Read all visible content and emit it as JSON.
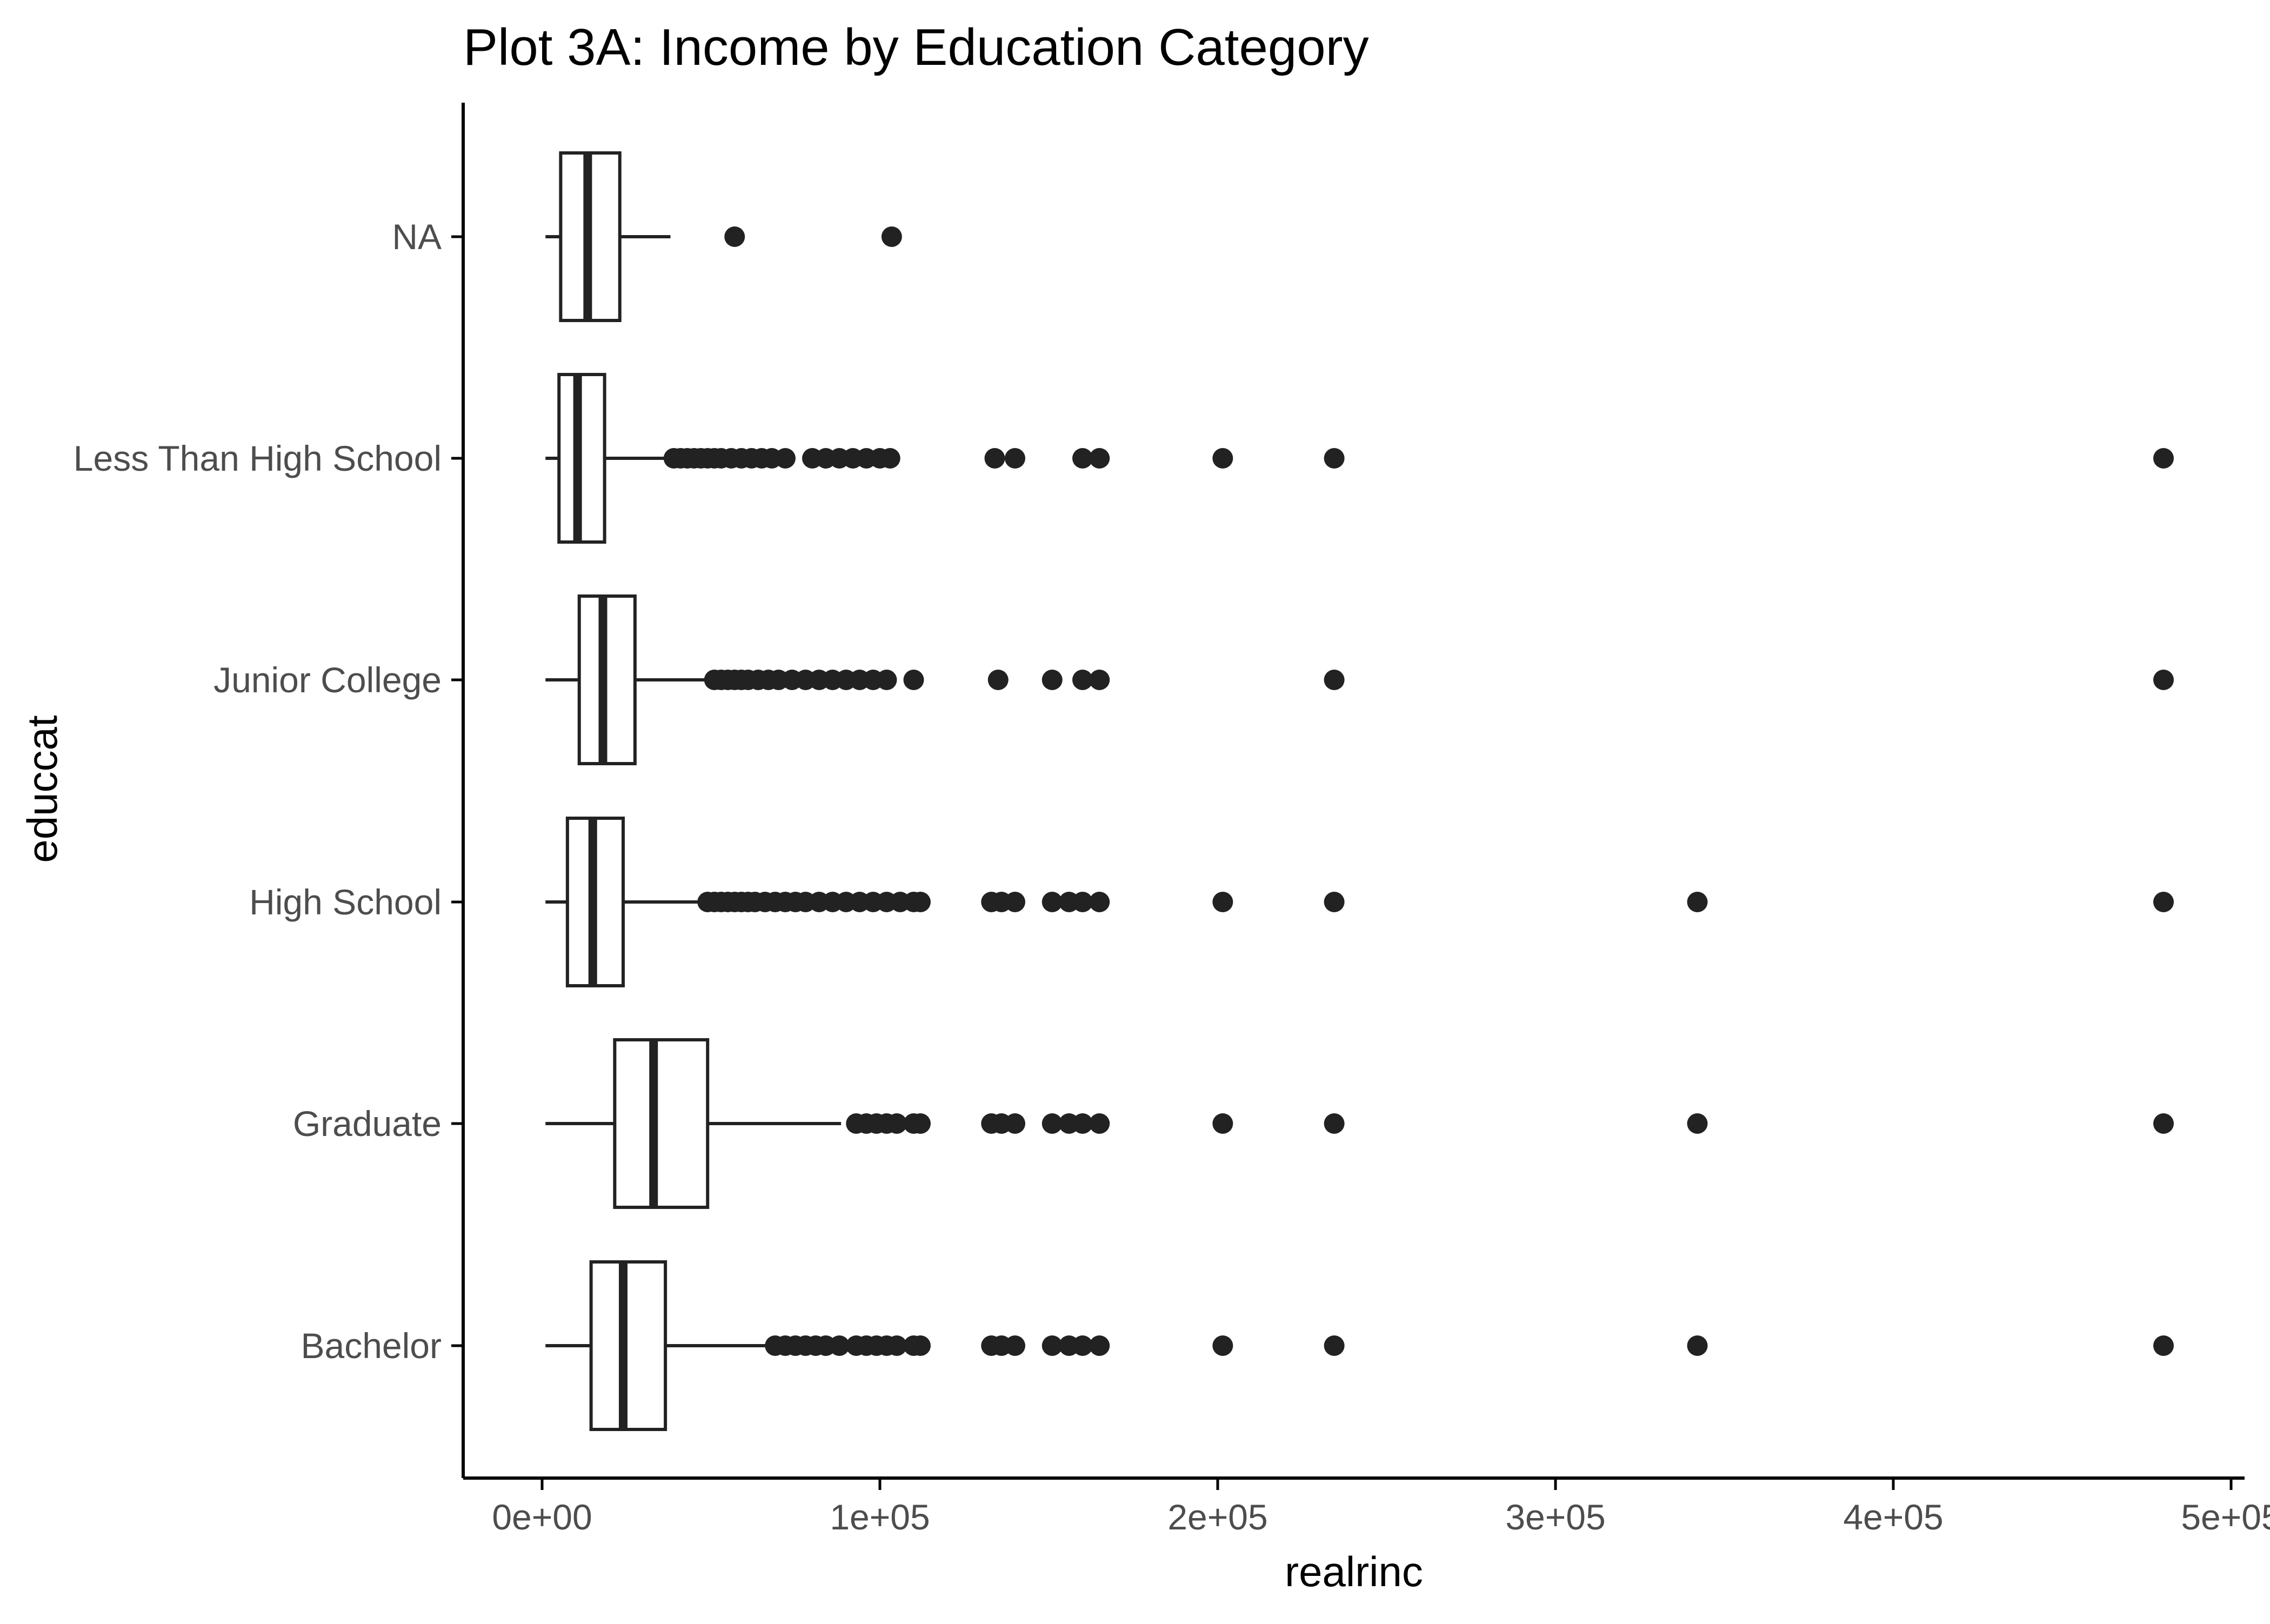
{
  "chart_data": {
    "type": "boxplot",
    "orientation": "horizontal",
    "title": "Plot 3A: Income by Education Category",
    "xlabel": "realrinc",
    "ylabel": "educcat",
    "xlim": [
      -23000,
      502000
    ],
    "x_ticks": [
      {
        "value": 0,
        "label": "0e+00"
      },
      {
        "value": 100000,
        "label": "1e+05"
      },
      {
        "value": 200000,
        "label": "2e+05"
      },
      {
        "value": 300000,
        "label": "3e+05"
      },
      {
        "value": 400000,
        "label": "4e+05"
      },
      {
        "value": 500000,
        "label": "5e+05"
      }
    ],
    "categories": [
      "NA",
      "Less Than High School",
      "Junior College",
      "High School",
      "Graduate",
      "Bachelor"
    ],
    "grid": false,
    "colors": {
      "box_fill": "#ffffff",
      "line": "#222222",
      "point": "#222222",
      "axis": "#000000"
    },
    "series": [
      {
        "category": "NA",
        "whisker_low": 1000,
        "q1": 5500,
        "median": 13500,
        "q3": 23000,
        "whisker_high": 38000,
        "outliers": [
          57000,
          103500
        ]
      },
      {
        "category": "Less Than High School",
        "whisker_low": 1000,
        "q1": 5000,
        "median": 10500,
        "q3": 18500,
        "whisker_high": 37000,
        "outliers": [
          39000,
          41000,
          43000,
          45000,
          47000,
          49000,
          51000,
          53000,
          56000,
          59000,
          62000,
          65000,
          68000,
          72000,
          80000,
          84000,
          88000,
          92000,
          96000,
          100000,
          103000,
          134000,
          140000,
          160000,
          165000,
          201500,
          234500,
          480000
        ]
      },
      {
        "category": "Junior College",
        "whisker_low": 1000,
        "q1": 11000,
        "median": 18000,
        "q3": 27500,
        "whisker_high": 50000,
        "outliers": [
          51000,
          53000,
          55000,
          57000,
          59000,
          61000,
          64000,
          67000,
          70000,
          74000,
          78000,
          82000,
          86000,
          90000,
          94000,
          98000,
          102000,
          110000,
          135000,
          151000,
          160000,
          165000,
          234500,
          480000
        ]
      },
      {
        "category": "High School",
        "whisker_low": 1000,
        "q1": 7500,
        "median": 15000,
        "q3": 24000,
        "whisker_high": 47000,
        "outliers": [
          49000,
          51000,
          53000,
          55000,
          57000,
          59000,
          61000,
          63000,
          66000,
          69000,
          72000,
          75000,
          78000,
          82000,
          86000,
          90000,
          94000,
          98000,
          102000,
          106000,
          110000,
          112000,
          133000,
          136000,
          140000,
          151000,
          156000,
          160000,
          165000,
          201500,
          234500,
          342000,
          480000
        ]
      },
      {
        "category": "Graduate",
        "whisker_low": 1000,
        "q1": 21500,
        "median": 33000,
        "q3": 49000,
        "whisker_high": 88500,
        "outliers": [
          93000,
          96000,
          99000,
          102000,
          105000,
          110000,
          112000,
          133000,
          136000,
          140000,
          151000,
          156000,
          160000,
          165000,
          201500,
          234500,
          342000,
          480000
        ]
      },
      {
        "category": "Bachelor",
        "whisker_low": 1000,
        "q1": 14500,
        "median": 24000,
        "q3": 36500,
        "whisker_high": 67000,
        "outliers": [
          69000,
          72000,
          75000,
          78000,
          81000,
          84000,
          88000,
          93000,
          96000,
          99000,
          102000,
          105000,
          110000,
          112000,
          133000,
          136000,
          140000,
          151000,
          156000,
          160000,
          165000,
          201500,
          234500,
          342000,
          480000
        ]
      }
    ]
  }
}
